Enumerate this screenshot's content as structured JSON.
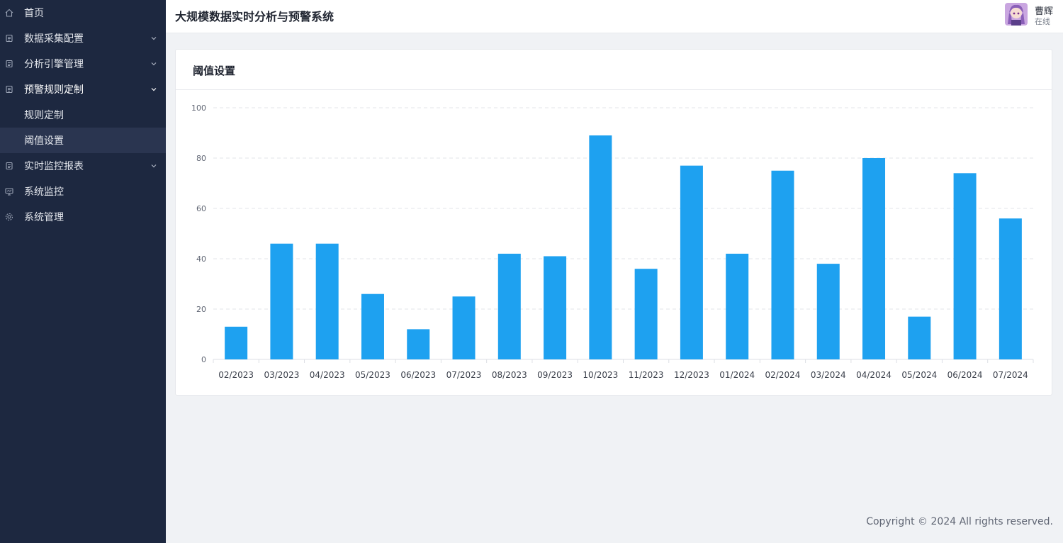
{
  "app": {
    "title": "大规模数据实时分析与预警系统"
  },
  "user": {
    "name": "曹辉",
    "status": "在线"
  },
  "sidebar": {
    "items": [
      {
        "label": "首页",
        "icon": "home-icon"
      },
      {
        "label": "数据采集配置",
        "icon": "doc-icon",
        "expandable": true
      },
      {
        "label": "分析引擎管理",
        "icon": "doc-icon",
        "expandable": true
      },
      {
        "label": "预警规则定制",
        "icon": "doc-icon",
        "expandable": true,
        "expanded": true
      },
      {
        "label": "规则定制",
        "sub": true
      },
      {
        "label": "阈值设置",
        "sub": true,
        "active": true
      },
      {
        "label": "实时监控报表",
        "icon": "doc-icon",
        "expandable": true
      },
      {
        "label": "系统监控",
        "icon": "monitor-icon"
      },
      {
        "label": "系统管理",
        "icon": "gear-icon"
      }
    ]
  },
  "card": {
    "title": "阈值设置"
  },
  "footer": {
    "text": "Copyright © 2024 All rights reserved."
  },
  "colors": {
    "bar": "#1ea1f0",
    "sidebar": "#1d2840"
  },
  "chart_data": {
    "type": "bar",
    "categories": [
      "02/2023",
      "03/2023",
      "04/2023",
      "05/2023",
      "06/2023",
      "07/2023",
      "08/2023",
      "09/2023",
      "10/2023",
      "11/2023",
      "12/2023",
      "01/2024",
      "02/2024",
      "03/2024",
      "04/2024",
      "05/2024",
      "06/2024",
      "07/2024"
    ],
    "values": [
      13,
      46,
      46,
      26,
      12,
      25,
      42,
      41,
      89,
      36,
      77,
      42,
      75,
      38,
      80,
      17,
      74,
      56
    ],
    "yticks": [
      0,
      20,
      40,
      60,
      80,
      100
    ],
    "ylim": [
      0,
      100
    ],
    "grid": true,
    "title": "",
    "xlabel": "",
    "ylabel": ""
  }
}
